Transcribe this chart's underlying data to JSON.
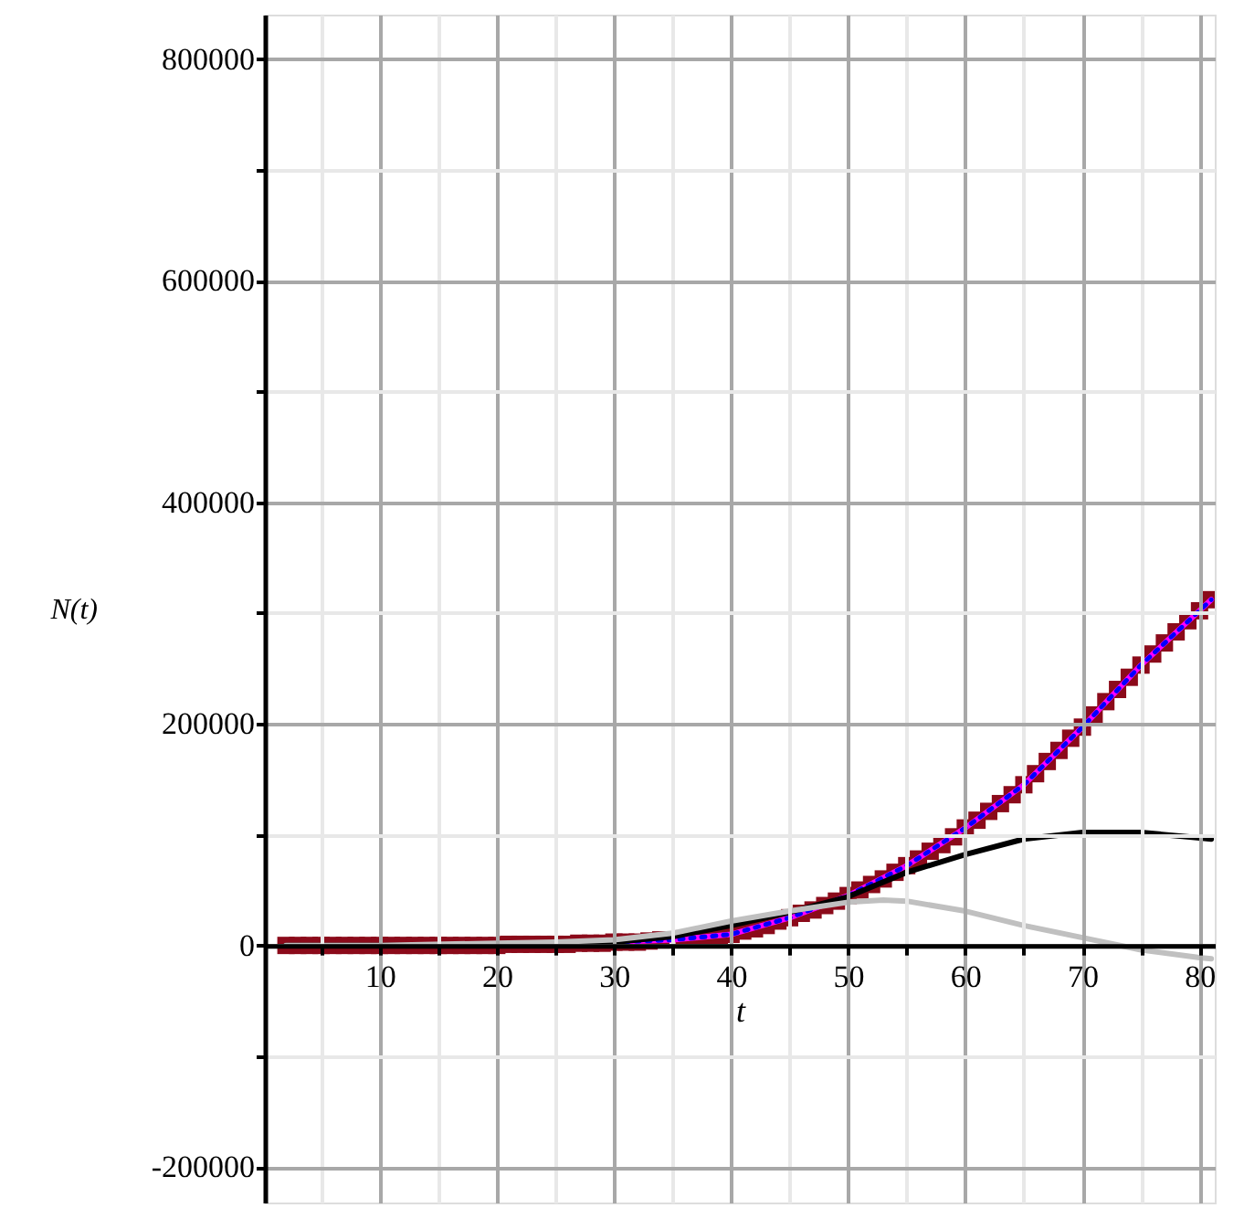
{
  "chart_data": {
    "type": "line",
    "xlabel": "t",
    "ylabel": "N(t)",
    "xlim": [
      0.2,
      81.3
    ],
    "ylim": [
      -232000,
      840000
    ],
    "xticks": [
      {
        "value": 5,
        "label": null
      },
      10,
      {
        "value": 15,
        "label": null
      },
      20,
      {
        "value": 25,
        "label": null
      },
      30,
      {
        "value": 35,
        "label": null
      },
      40,
      {
        "value": 45,
        "label": null
      },
      50,
      {
        "value": 55,
        "label": null
      },
      60,
      {
        "value": 65,
        "label": null
      },
      70,
      {
        "value": 75,
        "label": null
      },
      80
    ],
    "yticks": [
      -200000,
      {
        "value": -100000,
        "label": null
      },
      0,
      {
        "value": 100000,
        "label": null
      },
      200000,
      {
        "value": 300000,
        "label": null
      },
      400000,
      {
        "value": 500000,
        "label": null
      },
      600000,
      {
        "value": 700000,
        "label": null
      },
      800000
    ],
    "grid": true,
    "legend": false,
    "series": [
      {
        "type": "scatter",
        "marker": "square",
        "color": "#8b0a1a",
        "x": [
          2,
          3,
          4,
          5,
          6,
          7,
          8,
          9,
          10,
          11,
          12,
          13,
          14,
          15,
          16,
          17,
          18,
          19,
          20,
          21,
          22,
          23,
          24,
          25,
          26,
          27,
          28,
          29,
          30,
          31,
          32,
          33,
          34,
          35,
          36,
          37,
          38,
          39,
          40,
          41,
          42,
          43,
          44,
          45,
          46,
          47,
          48,
          49,
          50,
          51,
          52,
          53,
          54,
          55,
          56,
          57,
          58,
          59,
          60,
          61,
          62,
          63,
          64,
          65,
          66,
          67,
          68,
          69,
          70,
          71,
          72,
          73,
          74,
          75,
          76,
          77,
          78,
          79,
          80,
          81
        ],
        "values": [
          0,
          0,
          0,
          0,
          0,
          0,
          0,
          0,
          0,
          0,
          0,
          0,
          0,
          0,
          0,
          0,
          0,
          0,
          0,
          1000,
          1000,
          1000,
          1000,
          1000,
          1000,
          2000,
          2000,
          2000,
          3000,
          3000,
          3000,
          4000,
          5000,
          null,
          6000,
          7000,
          8000,
          9000,
          10000,
          13000,
          15000,
          18000,
          22000,
          25000,
          29000,
          32000,
          36000,
          40000,
          45000,
          50000,
          55000,
          60000,
          66000,
          72000,
          78000,
          85000,
          91000,
          98000,
          106000,
          113000,
          121000,
          128000,
          136000,
          145000,
          155000,
          166000,
          176000,
          187000,
          197000,
          208000,
          220000,
          231000,
          242000,
          253000,
          263000,
          273000,
          283000,
          293000,
          302000,
          312000
        ]
      },
      {
        "type": "line",
        "line_style": "solid",
        "color": "#ff00ff",
        "x": [
          30,
          35,
          40,
          45,
          50,
          55,
          60,
          65,
          70,
          75,
          81
        ],
        "values": [
          3000,
          5000,
          10000,
          25000,
          45000,
          72000,
          106000,
          145000,
          197000,
          253000,
          312000
        ]
      },
      {
        "type": "line",
        "line_style": "dotted",
        "color": "#0000ff",
        "x": [
          30,
          35,
          40,
          45,
          50,
          55,
          60,
          65,
          70,
          75,
          81
        ],
        "values": [
          3000,
          5000,
          10000,
          25000,
          45000,
          72000,
          106000,
          145000,
          197000,
          253000,
          312000
        ]
      },
      {
        "type": "line",
        "line_style": "solid",
        "color": "#000000",
        "x": [
          2,
          10,
          20,
          25,
          30,
          35,
          40,
          45,
          50,
          55,
          60,
          65,
          70,
          72,
          75,
          80,
          81
        ],
        "values": [
          0,
          0,
          0,
          1000,
          3000,
          8000,
          18000,
          30000,
          44000,
          66000,
          82000,
          96000,
          102000,
          102000,
          102000,
          97000,
          96000
        ]
      },
      {
        "type": "line",
        "line_style": "solid",
        "color": "#c0c0c0",
        "x": [
          2,
          10,
          20,
          25,
          30,
          35,
          40,
          45,
          50,
          53,
          55,
          60,
          65,
          70,
          75,
          80,
          81
        ],
        "values": [
          0,
          0,
          2000,
          3000,
          5000,
          11000,
          22000,
          31000,
          39000,
          41000,
          40000,
          31000,
          18000,
          7000,
          -4000,
          -11000,
          -12000
        ]
      }
    ]
  }
}
